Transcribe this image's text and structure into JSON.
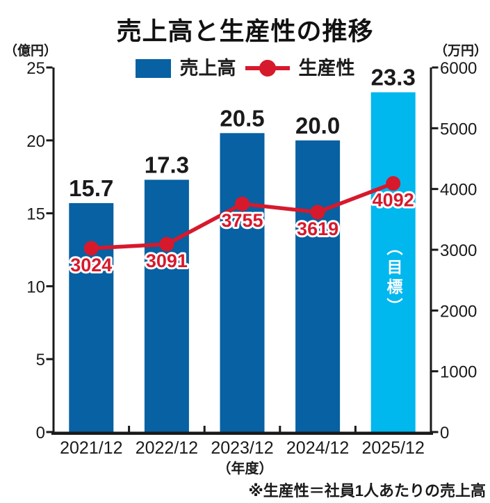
{
  "page": {
    "title": "売上高と生産性の推移",
    "footnote": "※生産性＝社員1人あたりの売上高"
  },
  "axes": {
    "left_unit": "（億円）",
    "right_unit": "（万円）",
    "x_unit": "（年度）"
  },
  "legend": {
    "bar_label": "売上高",
    "line_label": "生産性"
  },
  "goal_annotation": "（目標）",
  "colors": {
    "bar": "#0761A2",
    "goal_bar": "#00B7EE",
    "line": "#D7192C",
    "axis": "#1A1A1A",
    "text": "#1A1A1A"
  },
  "chart_data": {
    "type": "bar+line",
    "title": "売上高と生産性の推移",
    "categories": [
      "2021/12",
      "2022/12",
      "2023/12",
      "2024/12",
      "2025/12"
    ],
    "series": [
      {
        "name": "売上高",
        "type": "bar",
        "axis": "left",
        "unit": "億円",
        "values": [
          15.7,
          17.3,
          20.5,
          20.0,
          23.3
        ]
      },
      {
        "name": "生産性",
        "type": "line",
        "axis": "right",
        "unit": "万円",
        "values": [
          3024,
          3091,
          3755,
          3619,
          4092
        ]
      }
    ],
    "left_axis": {
      "label": "（億円）",
      "min": 0,
      "max": 25,
      "tick_step": 5
    },
    "right_axis": {
      "label": "（万円）",
      "min": 0,
      "max": 6000,
      "tick_step": 1000
    },
    "x_label": "（年度）",
    "goal_bar_index": 4,
    "goal_bar_note": "（目標）",
    "footnote": "※生産性＝社員1人あたりの売上高",
    "grid": false,
    "legend_position": "top"
  }
}
